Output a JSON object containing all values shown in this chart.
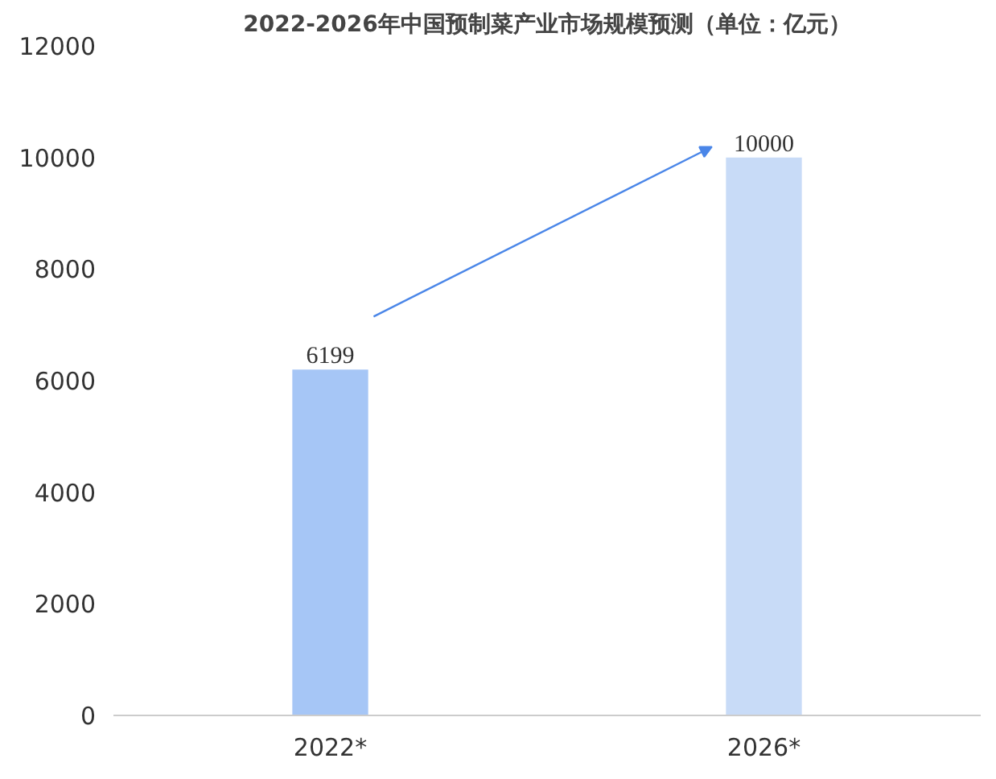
{
  "chart_data": {
    "type": "bar",
    "title": "2022-2026年中国预制菜产业市场规模预测（单位：亿元）",
    "categories": [
      "2022*",
      "2026*"
    ],
    "values": [
      6199,
      10000
    ],
    "colors": [
      "#a6c6f6",
      "#c8dbf7"
    ],
    "ylim": [
      0,
      12000
    ],
    "yticks": [
      0,
      2000,
      4000,
      6000,
      8000,
      10000,
      12000
    ],
    "grid": false,
    "data_labels": true
  }
}
